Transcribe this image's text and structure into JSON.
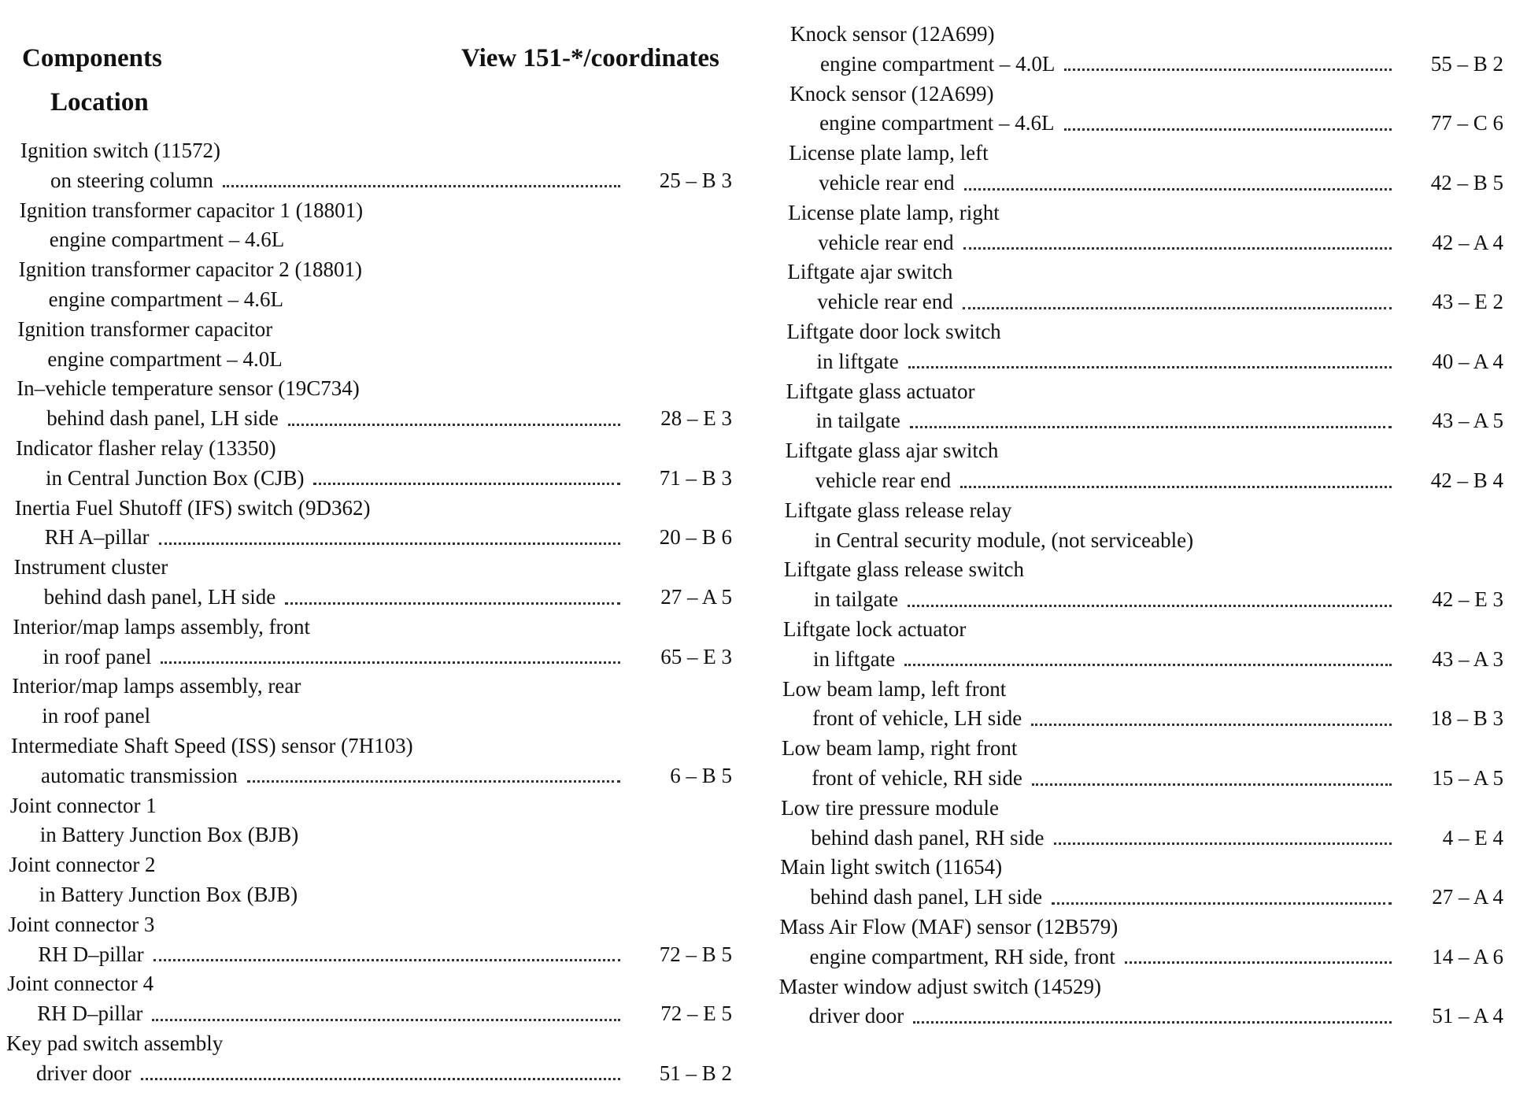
{
  "header": {
    "title": "Components",
    "subtitle": "Location",
    "coordinates": "View 151-*/coordinates"
  },
  "left": [
    {
      "name": "Ignition switch (11572)",
      "location": "on steering column",
      "ref": "25 – B 3"
    },
    {
      "name": "Ignition transformer capacitor 1 (18801)",
      "location": "engine compartment – 4.6L"
    },
    {
      "name": "Ignition transformer capacitor 2 (18801)",
      "location": "engine compartment – 4.6L"
    },
    {
      "name": "Ignition transformer capacitor",
      "location": "engine compartment – 4.0L"
    },
    {
      "name": "In–vehicle temperature sensor (19C734)",
      "location": "behind dash panel, LH side",
      "ref": "28 – E 3"
    },
    {
      "name": "Indicator flasher relay (13350)",
      "location": "in Central Junction Box (CJB)",
      "ref": "71 – B 3"
    },
    {
      "name": "Inertia Fuel Shutoff (IFS) switch (9D362)",
      "location": "RH A–pillar",
      "ref": "20 – B 6"
    },
    {
      "name": "Instrument cluster",
      "location": "behind dash panel, LH side",
      "ref": "27 – A 5"
    },
    {
      "name": "Interior/map lamps assembly, front",
      "location": "in roof panel",
      "ref": "65 – E 3"
    },
    {
      "name": "Interior/map lamps assembly, rear",
      "location": "in roof panel"
    },
    {
      "name": "Intermediate Shaft Speed (ISS) sensor (7H103)",
      "location": "automatic transmission",
      "ref": "6 – B 5"
    },
    {
      "name": "Joint connector 1",
      "location": "in Battery Junction Box (BJB)"
    },
    {
      "name": "Joint connector 2",
      "location": "in Battery Junction Box (BJB)"
    },
    {
      "name": "Joint connector 3",
      "location": "RH D–pillar",
      "ref": "72 – B 5"
    },
    {
      "name": "Joint connector 4",
      "location": "RH D–pillar",
      "ref": "72 – E 5"
    },
    {
      "name": "Key pad switch assembly",
      "location": "driver door",
      "ref": "51 – B 2"
    }
  ],
  "right": [
    {
      "name": "Knock sensor (12A699)",
      "location": "engine compartment – 4.0L",
      "ref": "55 – B 2"
    },
    {
      "name": "Knock sensor (12A699)",
      "location": "engine compartment – 4.6L",
      "ref": "77 – C 6"
    },
    {
      "name": "License plate lamp, left",
      "location": "vehicle rear end",
      "ref": "42 – B 5"
    },
    {
      "name": "License plate lamp, right",
      "location": "vehicle rear end",
      "ref": "42 – A 4"
    },
    {
      "name": "Liftgate ajar switch",
      "location": "vehicle rear end",
      "ref": "43 – E 2"
    },
    {
      "name": "Liftgate door lock switch",
      "location": "in liftgate",
      "ref": "40 – A 4"
    },
    {
      "name": "Liftgate glass actuator",
      "location": "in tailgate",
      "ref": "43 – A 5"
    },
    {
      "name": "Liftgate glass ajar switch",
      "location": "vehicle rear end",
      "ref": "42 – B 4"
    },
    {
      "name": "Liftgate glass release relay",
      "location": "in Central security module, (not serviceable)"
    },
    {
      "name": "Liftgate glass release switch",
      "location": "in tailgate",
      "ref": "42 – E 3"
    },
    {
      "name": "Liftgate lock actuator",
      "location": "in liftgate",
      "ref": "43 – A 3"
    },
    {
      "name": "Low beam lamp, left front",
      "location": "front of vehicle, LH side",
      "ref": "18 – B 3"
    },
    {
      "name": "Low beam lamp, right front",
      "location": "front of vehicle, RH side",
      "ref": "15 – A 5"
    },
    {
      "name": "Low tire pressure module",
      "location": "behind dash panel, RH side",
      "ref": "4 – E 4"
    },
    {
      "name": "Main light switch (11654)",
      "location": "behind dash panel, LH side",
      "ref": "27 – A 4"
    },
    {
      "name": "Mass Air Flow (MAF) sensor (12B579)",
      "location": "engine compartment, RH side, front",
      "ref": "14 – A 6"
    },
    {
      "name": "Master window adjust switch (14529)",
      "location": "driver door",
      "ref": "51 – A 4"
    }
  ]
}
